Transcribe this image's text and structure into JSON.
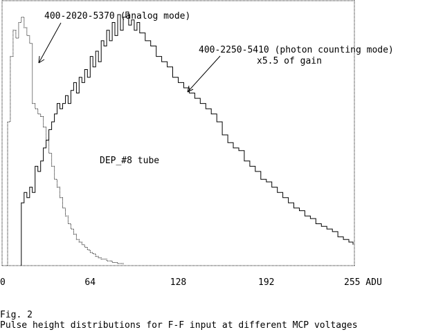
{
  "chart_data": {
    "type": "line",
    "x_ticks": [
      0,
      64,
      128,
      192,
      255
    ],
    "x_unit": "ADU",
    "xlim": [
      0,
      256
    ],
    "ylim": [
      0,
      1.0
    ],
    "grid": false,
    "annotations": [
      "400-2020-5370 (analog mode)",
      "400-2250-5410 (photon counting mode)",
      "x5.5 of gain",
      "DEP_#8 tube"
    ],
    "series": [
      {
        "style": "solid",
        "x": [
          14,
          16,
          18,
          20,
          22,
          24,
          26,
          28,
          30,
          32,
          34,
          36,
          38,
          40,
          42,
          44,
          46,
          48,
          50,
          52,
          54,
          56,
          58,
          60,
          62,
          64,
          66,
          68,
          70,
          72,
          74,
          76,
          78,
          80,
          82,
          84,
          86,
          88,
          90,
          92,
          94,
          96,
          98,
          100,
          104,
          108,
          112,
          116,
          120,
          124,
          128,
          132,
          136,
          140,
          144,
          148,
          152,
          156,
          160,
          164,
          168,
          172,
          176,
          180,
          184,
          188,
          192,
          196,
          200,
          204,
          208,
          212,
          216,
          220,
          224,
          228,
          232,
          236,
          240,
          244,
          248,
          252,
          255
        ],
        "values": [
          0.24,
          0.28,
          0.26,
          0.3,
          0.28,
          0.38,
          0.36,
          0.4,
          0.45,
          0.48,
          0.52,
          0.55,
          0.58,
          0.62,
          0.6,
          0.62,
          0.65,
          0.62,
          0.67,
          0.7,
          0.66,
          0.72,
          0.7,
          0.75,
          0.72,
          0.8,
          0.76,
          0.82,
          0.78,
          0.86,
          0.84,
          0.9,
          0.86,
          0.93,
          0.88,
          0.96,
          0.9,
          0.95,
          0.97,
          0.92,
          0.94,
          0.9,
          0.93,
          0.89,
          0.86,
          0.84,
          0.8,
          0.78,
          0.76,
          0.72,
          0.7,
          0.68,
          0.66,
          0.64,
          0.62,
          0.6,
          0.58,
          0.55,
          0.5,
          0.47,
          0.45,
          0.44,
          0.4,
          0.38,
          0.36,
          0.33,
          0.32,
          0.3,
          0.28,
          0.26,
          0.24,
          0.22,
          0.21,
          0.19,
          0.18,
          0.16,
          0.15,
          0.14,
          0.13,
          0.11,
          0.1,
          0.09,
          0.08
        ]
      },
      {
        "style": "dotted",
        "x": [
          2,
          4,
          6,
          8,
          10,
          12,
          14,
          16,
          18,
          20,
          22,
          24,
          26,
          28,
          30,
          32,
          34,
          36,
          38,
          40,
          42,
          44,
          46,
          48,
          50,
          52,
          54,
          56,
          58,
          60,
          62,
          64,
          66,
          68,
          70,
          72,
          76,
          80,
          84,
          88
        ],
        "values": [
          0.0,
          0.55,
          0.8,
          0.9,
          0.87,
          0.93,
          0.95,
          0.91,
          0.88,
          0.85,
          0.62,
          0.6,
          0.58,
          0.57,
          0.53,
          0.48,
          0.43,
          0.38,
          0.33,
          0.3,
          0.26,
          0.22,
          0.19,
          0.16,
          0.14,
          0.12,
          0.1,
          0.09,
          0.08,
          0.07,
          0.06,
          0.05,
          0.045,
          0.035,
          0.03,
          0.025,
          0.018,
          0.012,
          0.008,
          0.004
        ]
      }
    ]
  },
  "caption": {
    "figure_label": "Fig. 2",
    "text": "Pulse height distributions for F-F input at different MCP voltages"
  }
}
